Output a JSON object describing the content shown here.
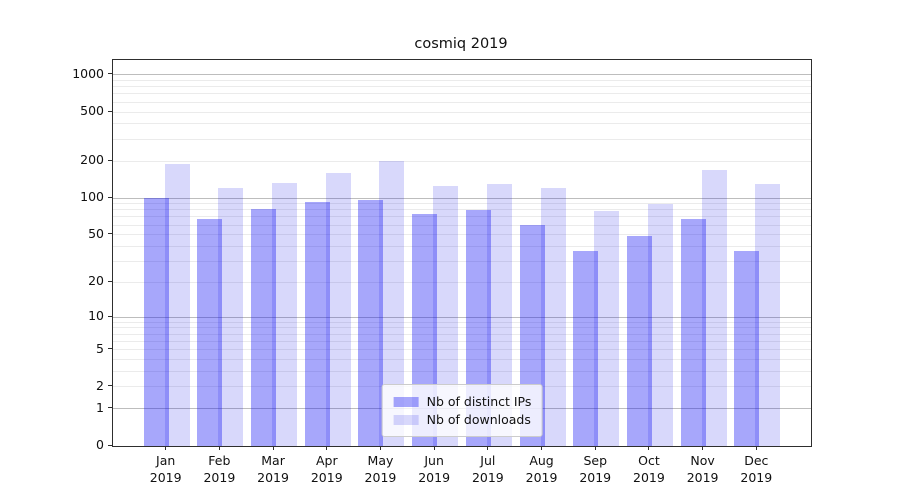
{
  "chart_data": {
    "type": "bar",
    "title": "cosmiq 2019",
    "categories": [
      "Jan 2019",
      "Feb 2019",
      "Mar 2019",
      "Apr 2019",
      "May 2019",
      "Jun 2019",
      "Jul 2019",
      "Aug 2019",
      "Sep 2019",
      "Oct 2019",
      "Nov 2019",
      "Dec 2019"
    ],
    "series": [
      {
        "name": "Nb of distinct IPs",
        "color_hex": "#a8a8f8",
        "fill": "rgba(10,10,245,0.36)",
        "values": [
          100,
          67,
          82,
          93,
          97,
          74,
          80,
          60,
          37,
          49,
          68,
          37
        ]
      },
      {
        "name": "Nb of downloads",
        "color_hex": "#d8d8f9",
        "fill": "rgba(10,10,230,0.16)",
        "values": [
          190,
          122,
          132,
          161,
          200,
          125,
          131,
          120,
          79,
          89,
          170,
          131
        ]
      }
    ],
    "xlabel": "",
    "ylabel": "",
    "yscale": "symlog (log10 of 1+value)",
    "yticks": [
      0,
      1,
      2,
      5,
      10,
      20,
      50,
      100,
      200,
      500,
      1000
    ],
    "ylim": [
      0,
      1320
    ],
    "grid": "major and minor horizontal gridlines",
    "legend_position": "lower center"
  },
  "colors": {
    "background": "#ffffff",
    "spine": "#2e2e2e",
    "grid_major": "#bdbdbd",
    "grid_minor": "#ebebeb",
    "text": "#111111",
    "legend_border": "#cccccc"
  }
}
